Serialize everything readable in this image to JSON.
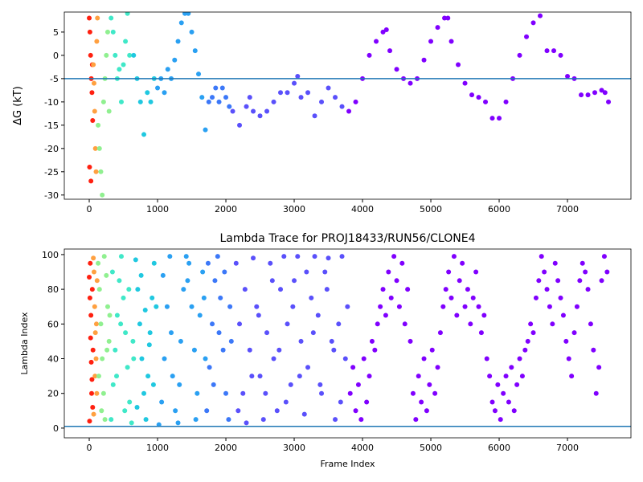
{
  "chart_data": [
    {
      "type": "scatter",
      "ylabel": "ΔG (kT)",
      "xlim": [
        -365,
        7929
      ],
      "ylim": [
        -30.9,
        9.3
      ],
      "xticks": [
        0,
        1000,
        2000,
        3000,
        4000,
        5000,
        6000,
        7000
      ],
      "yticks": [
        -30,
        -25,
        -20,
        -15,
        -10,
        -5,
        0,
        5
      ],
      "hline": -5,
      "hline_color": "#1f77b4",
      "series": [
        {
          "color": "#ff2010",
          "x": [
            0,
            10,
            20,
            30,
            40,
            50,
            5,
            25,
            45
          ],
          "values": [
            8,
            5,
            0,
            -5,
            -8,
            -14,
            -24,
            -27,
            -2
          ]
        },
        {
          "color": "#ffa040",
          "x": [
            60,
            70,
            80,
            90,
            100,
            110,
            120
          ],
          "values": [
            -2,
            -6,
            -12,
            -20,
            -25,
            3,
            8
          ]
        },
        {
          "color": "#90f090",
          "x": [
            130,
            150,
            170,
            190,
            210,
            230,
            250,
            270,
            290
          ],
          "values": [
            -15,
            -20,
            -25,
            -30,
            -10,
            -5,
            0,
            5,
            -12
          ]
        },
        {
          "color": "#40e8c8",
          "x": [
            320,
            350,
            380,
            410,
            440,
            470,
            500,
            530,
            560,
            590
          ],
          "values": [
            8,
            5,
            0,
            -5,
            -3,
            -10,
            -2,
            3,
            9,
            0
          ]
        },
        {
          "color": "#20c8e0",
          "x": [
            650,
            700,
            750,
            800,
            850,
            900,
            950
          ],
          "values": [
            0,
            -5,
            -10,
            -17,
            -8,
            -10,
            -5
          ]
        },
        {
          "color": "#2aa0f2",
          "x": [
            1000,
            1050,
            1100,
            1150,
            1200,
            1250,
            1300,
            1350,
            1400,
            1450,
            1500,
            1550,
            1600,
            1650,
            1700
          ],
          "values": [
            -7,
            -5,
            -8,
            -3,
            -5,
            -1,
            3,
            7,
            9,
            9,
            5,
            1,
            -4,
            -9,
            -16
          ]
        },
        {
          "color": "#3c78f8",
          "x": [
            1750,
            1800,
            1850,
            1900,
            1950,
            2000,
            2050
          ],
          "values": [
            -10,
            -9,
            -7,
            -10,
            -7,
            -9,
            -11
          ]
        },
        {
          "color": "#5a50fb",
          "x": [
            2100,
            2200,
            2300,
            2350,
            2400,
            2500,
            2600,
            2700,
            2800,
            2900,
            3000,
            3050,
            3100,
            3200,
            3300,
            3400,
            3500,
            3600,
            3700
          ],
          "values": [
            -12,
            -15,
            -11,
            -9,
            -12,
            -13,
            -12,
            -10,
            -8,
            -8,
            -6,
            -4.5,
            -9,
            -8,
            -13,
            -10,
            -7,
            -9,
            -11
          ]
        },
        {
          "color": "#8000ff",
          "x": [
            3800,
            3900,
            4000,
            4100,
            4200,
            4300,
            4350,
            4400,
            4500,
            4600,
            4700,
            4800,
            4900,
            5000,
            5100,
            5200,
            5250,
            5300,
            5400,
            5500,
            5600,
            5700,
            5800,
            5900,
            6000,
            6100,
            6200,
            6300,
            6400,
            6500,
            6600,
            6700,
            6800,
            6900,
            7000,
            7100,
            7200,
            7300,
            7400,
            7500,
            7550,
            7600
          ],
          "values": [
            -12,
            -10,
            -5,
            0,
            3,
            5,
            5.5,
            1,
            -3,
            -5,
            -6,
            -5,
            -1,
            3,
            6,
            8,
            8,
            3,
            -2,
            -6,
            -8.5,
            -9,
            -10,
            -13.5,
            -13.5,
            -10,
            -5,
            0,
            4,
            7,
            8.5,
            1,
            1,
            0,
            -4.5,
            -5,
            -8.5,
            -8.5,
            -8,
            -7.5,
            -8,
            -10
          ]
        }
      ]
    },
    {
      "type": "scatter",
      "title": "Lambda Trace for PROJ18433/RUN56/CLONE4",
      "xlabel": "Frame Index",
      "ylabel": "Lambda Index",
      "xlim": [
        -365,
        7929
      ],
      "ylim": [
        -5.6,
        103.2
      ],
      "xticks": [
        0,
        1000,
        2000,
        3000,
        4000,
        5000,
        6000,
        7000
      ],
      "yticks": [
        0,
        20,
        40,
        60,
        80,
        100
      ],
      "hline": 1,
      "hline_color": "#1f77b4",
      "series": [
        {
          "color": "#ff2010",
          "x": [
            0,
            10,
            20,
            30,
            40,
            50,
            5,
            15,
            25,
            35,
            45,
            55
          ],
          "values": [
            87,
            75,
            52,
            38,
            28,
            12,
            4,
            95,
            65,
            20,
            80,
            45
          ]
        },
        {
          "color": "#ffa040",
          "x": [
            60,
            70,
            80,
            90,
            100,
            110,
            65,
            85,
            105,
            115
          ],
          "values": [
            98,
            90,
            70,
            55,
            40,
            20,
            8,
            30,
            60,
            85
          ]
        },
        {
          "color": "#90f090",
          "x": [
            130,
            150,
            170,
            190,
            210,
            230,
            250,
            270,
            290,
            140,
            180,
            220,
            260,
            300
          ],
          "values": [
            95,
            80,
            60,
            40,
            20,
            5,
            88,
            70,
            50,
            30,
            10,
            99,
            45,
            65
          ]
        },
        {
          "color": "#40e8c8",
          "x": [
            320,
            350,
            380,
            410,
            440,
            470,
            500,
            530,
            560,
            590,
            620,
            650,
            340,
            400,
            460,
            520,
            580,
            640
          ],
          "values": [
            5,
            25,
            45,
            65,
            85,
            99,
            75,
            55,
            35,
            15,
            3,
            40,
            90,
            30,
            60,
            10,
            80,
            50
          ]
        },
        {
          "color": "#20c8e0",
          "x": [
            680,
            710,
            740,
            770,
            800,
            830,
            860,
            890,
            920,
            950,
            980,
            700,
            760,
            820,
            880,
            940
          ],
          "values": [
            97,
            80,
            60,
            40,
            20,
            5,
            30,
            55,
            75,
            95,
            70,
            12,
            88,
            68,
            48,
            25
          ]
        },
        {
          "color": "#2aa0f2",
          "x": [
            1020,
            1060,
            1100,
            1140,
            1180,
            1220,
            1260,
            1300,
            1340,
            1380,
            1420,
            1460,
            1500,
            1540,
            1580,
            1620,
            1660,
            1700,
            1080,
            1200,
            1320,
            1440,
            1560,
            1680
          ],
          "values": [
            2,
            15,
            40,
            70,
            99,
            30,
            10,
            3,
            50,
            80,
            99,
            95,
            70,
            45,
            20,
            65,
            90,
            40,
            88,
            55,
            25,
            85,
            5,
            75
          ]
        },
        {
          "color": "#3c78f8",
          "x": [
            1720,
            1760,
            1800,
            1840,
            1880,
            1920,
            1960,
            2000,
            2040,
            2080,
            1740,
            1820,
            1900,
            1980,
            2060
          ],
          "values": [
            10,
            35,
            60,
            85,
            99,
            75,
            45,
            20,
            5,
            50,
            95,
            25,
            55,
            90,
            70
          ]
        },
        {
          "color": "#5a50fb",
          "x": [
            2150,
            2200,
            2250,
            2300,
            2350,
            2400,
            2450,
            2500,
            2550,
            2600,
            2650,
            2700,
            2750,
            2800,
            2850,
            2900,
            2950,
            3000,
            3050,
            3100,
            3150,
            3200,
            3250,
            3300,
            3350,
            3400,
            3450,
            3500,
            3550,
            3600,
            3650,
            3700,
            3750,
            2180,
            2280,
            2380,
            2480,
            2580,
            2680,
            2780,
            2880,
            2980,
            3080,
            3180,
            3280,
            3380,
            3480,
            3580,
            3680,
            3780
          ],
          "values": [
            95,
            60,
            20,
            3,
            45,
            98,
            70,
            30,
            5,
            55,
            95,
            40,
            10,
            80,
            99,
            60,
            25,
            85,
            99,
            50,
            8,
            35,
            75,
            99,
            65,
            20,
            90,
            98,
            50,
            5,
            60,
            99,
            40,
            10,
            80,
            30,
            65,
            20,
            85,
            45,
            15,
            70,
            30,
            90,
            55,
            25,
            80,
            45,
            15,
            70
          ]
        },
        {
          "color": "#8000ff",
          "x": [
            3820,
            3860,
            3900,
            3940,
            3980,
            4020,
            4060,
            4100,
            4140,
            4180,
            4220,
            4260,
            4300,
            4340,
            4380,
            4420,
            4460,
            4500,
            4540,
            4580,
            4620,
            4660,
            4700,
            4740,
            4780,
            4820,
            4860,
            4900,
            4940,
            4980,
            5020,
            5060,
            5100,
            5140,
            5180,
            5220,
            5260,
            5300,
            5340,
            5380,
            5420,
            5460,
            5500,
            5540,
            5580,
            5620,
            5660,
            5700,
            5740,
            5780,
            5820,
            5860,
            5900,
            5940,
            5980,
            6020,
            6060,
            6100,
            6140,
            6180,
            6220,
            6260,
            6300,
            6340,
            6380,
            6420,
            6460,
            6500,
            6540,
            6580,
            6620,
            6660,
            6700,
            6740,
            6780,
            6820,
            6860,
            6900,
            6940,
            6980,
            7020,
            7060,
            7100,
            7140,
            7180,
            7220,
            7260,
            7300,
            7340,
            7380,
            7420,
            7460,
            7500,
            7540,
            7580
          ],
          "values": [
            20,
            35,
            10,
            25,
            5,
            40,
            15,
            30,
            50,
            45,
            60,
            70,
            80,
            65,
            90,
            75,
            99,
            85,
            70,
            95,
            60,
            80,
            50,
            20,
            5,
            30,
            15,
            40,
            10,
            25,
            45,
            20,
            35,
            55,
            70,
            80,
            90,
            75,
            99,
            65,
            85,
            95,
            70,
            80,
            60,
            75,
            90,
            70,
            55,
            65,
            40,
            30,
            15,
            10,
            25,
            5,
            20,
            30,
            15,
            35,
            10,
            25,
            40,
            30,
            45,
            50,
            60,
            55,
            75,
            85,
            99,
            90,
            80,
            70,
            60,
            95,
            85,
            75,
            65,
            50,
            40,
            30,
            55,
            70,
            85,
            95,
            90,
            80,
            60,
            45,
            20,
            35,
            85,
            99,
            90
          ]
        }
      ]
    }
  ]
}
